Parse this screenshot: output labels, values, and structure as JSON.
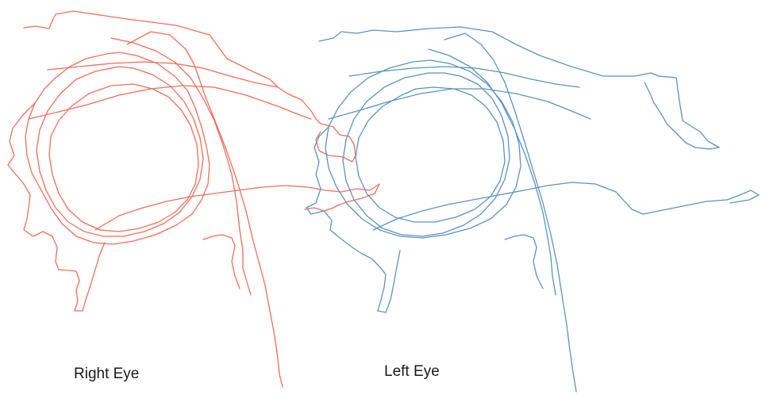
{
  "labels": {
    "right_eye": "Right Eye",
    "left_eye": "Left Eye"
  },
  "colors": {
    "right_eye_trace": "#f26d5b",
    "left_eye_trace": "#5b93c4",
    "background": "#ffffff"
  }
}
